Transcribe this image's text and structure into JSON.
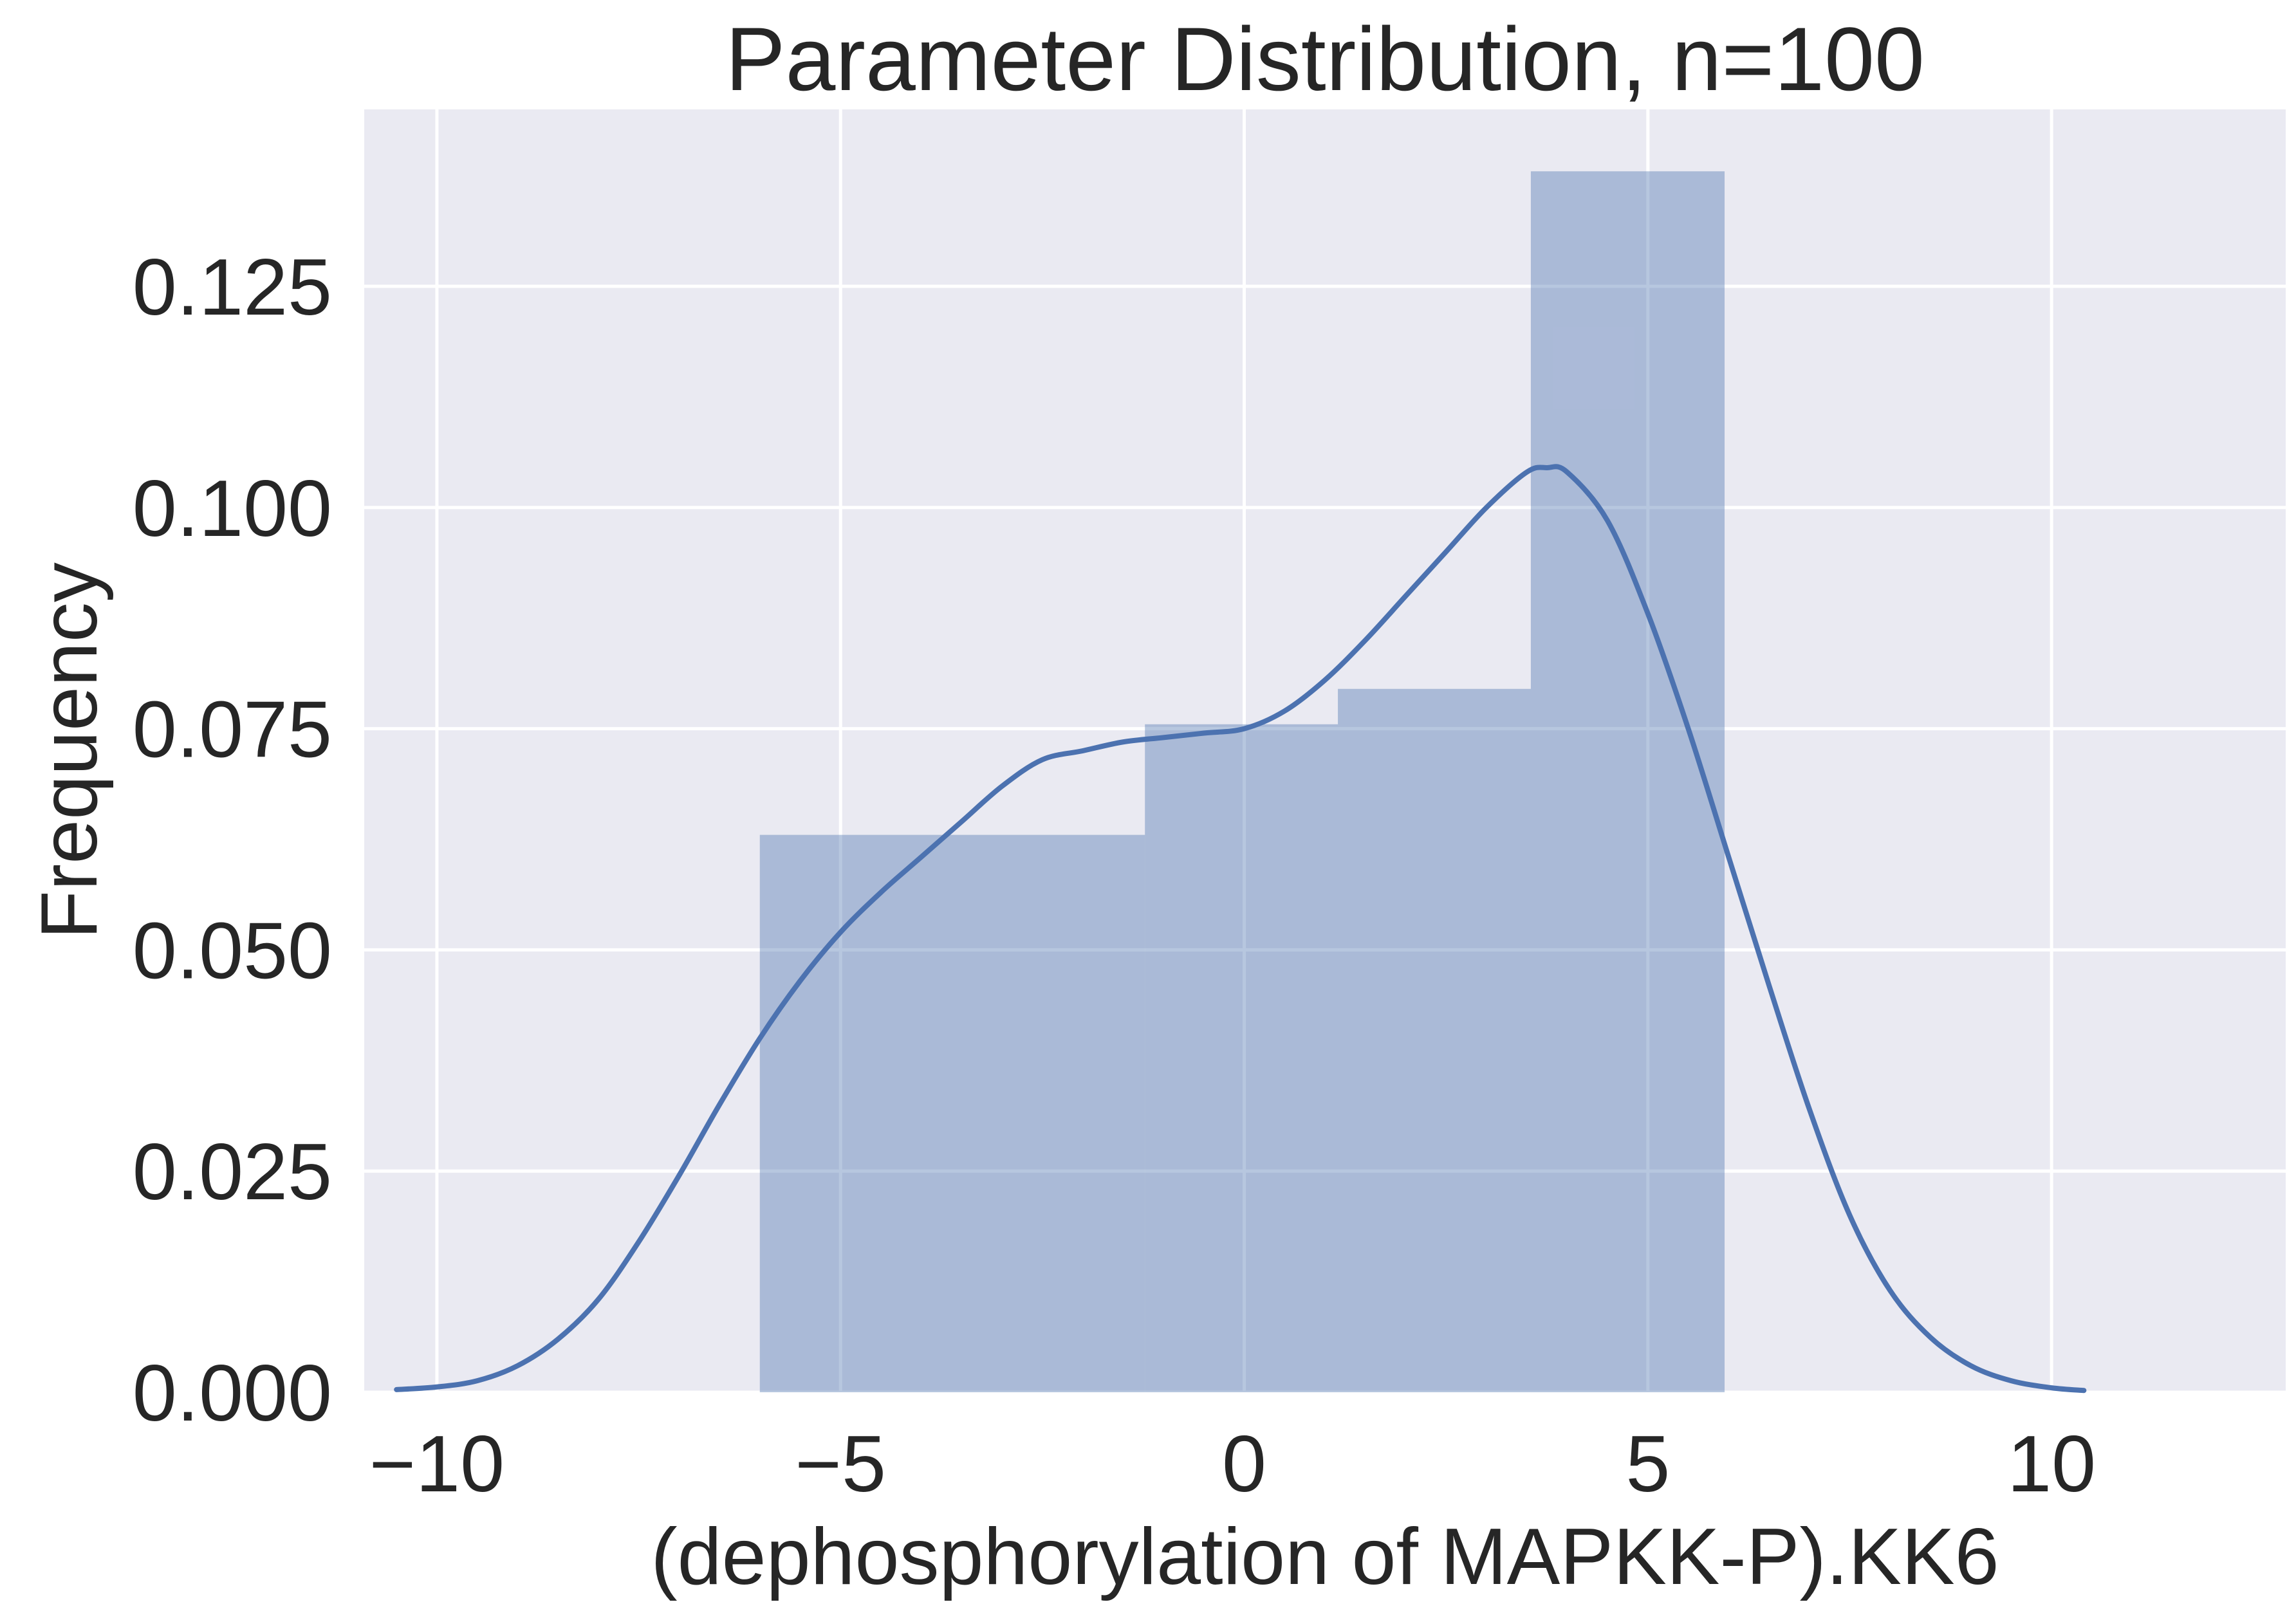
{
  "chart_data": {
    "type": "bar",
    "title": "Parameter Distribution, n=100",
    "xlabel": "(dephosphorylation of MAPKK-P).KK6",
    "ylabel": "Frequency",
    "xlim": [
      -10.9,
      12.9
    ],
    "ylim": [
      0,
      0.145
    ],
    "xticks": [
      -10,
      -5,
      0,
      5,
      10
    ],
    "xtick_labels": [
      "−10",
      "−5",
      "0",
      "5",
      "10"
    ],
    "yticks": [
      0.0,
      0.025,
      0.05,
      0.075,
      0.1,
      0.125
    ],
    "ytick_labels": [
      "0.000",
      "0.025",
      "0.050",
      "0.075",
      "0.100",
      "0.125"
    ],
    "grid": true,
    "histogram": {
      "bins": [
        {
          "x0": -6.0,
          "x1": -1.23,
          "value": 0.063
        },
        {
          "x0": -1.23,
          "x1": 1.16,
          "value": 0.0755
        },
        {
          "x0": 1.16,
          "x1": 3.55,
          "value": 0.0795
        },
        {
          "x0": 3.55,
          "x1": 5.95,
          "value": 0.138
        }
      ],
      "color": "#4c72b0",
      "alpha": 0.4
    },
    "kde": {
      "color": "#4c72b0",
      "x": [
        -10.5,
        -10,
        -9.5,
        -9,
        -8.5,
        -8,
        -7.5,
        -7,
        -6.5,
        -6,
        -5.5,
        -5,
        -4.5,
        -4,
        -3.5,
        -3,
        -2.5,
        -2,
        -1.5,
        -1,
        -0.5,
        0,
        0.5,
        1,
        1.5,
        2,
        2.5,
        3,
        3.5,
        3.75,
        4,
        4.5,
        5,
        5.5,
        6,
        6.5,
        7,
        7.5,
        8,
        8.5,
        9,
        9.5,
        10,
        10.4
      ],
      "y": [
        0.0003,
        0.0006,
        0.0013,
        0.003,
        0.006,
        0.0105,
        0.017,
        0.0245,
        0.0325,
        0.04,
        0.0465,
        0.052,
        0.0565,
        0.0605,
        0.0645,
        0.0685,
        0.0715,
        0.0725,
        0.0735,
        0.074,
        0.0745,
        0.075,
        0.077,
        0.0805,
        0.085,
        0.09,
        0.095,
        0.1,
        0.104,
        0.1045,
        0.104,
        0.0985,
        0.088,
        0.075,
        0.0605,
        0.046,
        0.032,
        0.02,
        0.0115,
        0.0062,
        0.003,
        0.0013,
        0.0005,
        0.0002
      ]
    }
  }
}
